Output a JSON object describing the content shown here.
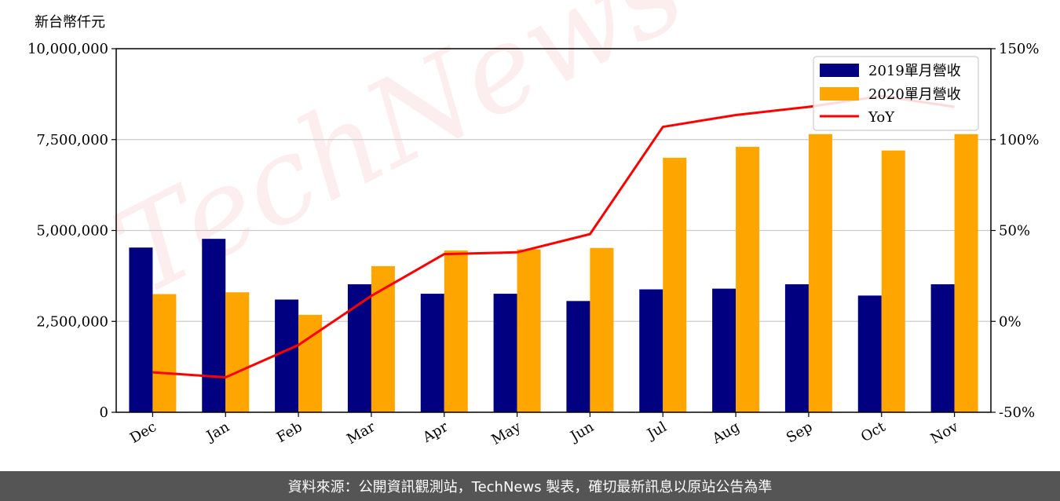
{
  "unit_label": "新台幣仟元",
  "watermark": "TechNews",
  "footer": "資料來源：公開資訊觀測站，TechNews 製表，確切最新訊息以原站公告為準",
  "colors": {
    "series_2019": "#000080",
    "series_2020": "#ffa500",
    "yoy": "#ff0000",
    "grid": "#cccccc",
    "footer_bg": "#555555"
  },
  "chart_data": {
    "type": "bar",
    "categories": [
      "Dec",
      "Jan",
      "Feb",
      "Mar",
      "Apr",
      "May",
      "Jun",
      "Jul",
      "Aug",
      "Sep",
      "Oct",
      "Nov"
    ],
    "series": [
      {
        "name": "2019單月營收",
        "values": [
          4530000,
          4770000,
          3100000,
          3520000,
          3260000,
          3260000,
          3060000,
          3380000,
          3400000,
          3520000,
          3210000,
          3520000
        ]
      },
      {
        "name": "2020單月營收",
        "values": [
          3250000,
          3300000,
          2680000,
          4020000,
          4450000,
          4480000,
          4520000,
          7000000,
          7300000,
          7650000,
          7200000,
          7650000
        ]
      }
    ],
    "line_series": {
      "name": "YoY",
      "values": [
        -28,
        -30.8,
        -13,
        14,
        37,
        38,
        48,
        107,
        113.5,
        118,
        124,
        118
      ]
    },
    "ylim": [
      0,
      10000000
    ],
    "yticks": [
      0,
      2500000,
      5000000,
      7500000,
      10000000
    ],
    "ytick_labels": [
      "0",
      "2,500,000",
      "5,000,000",
      "7,500,000",
      "10,000,000"
    ],
    "y2lim": [
      -50,
      150
    ],
    "y2ticks": [
      -50,
      0,
      50,
      100,
      150
    ],
    "y2tick_labels": [
      "-50%",
      "0%",
      "50%",
      "100%",
      "150%"
    ],
    "grid": true,
    "legend_position": "top-right"
  }
}
